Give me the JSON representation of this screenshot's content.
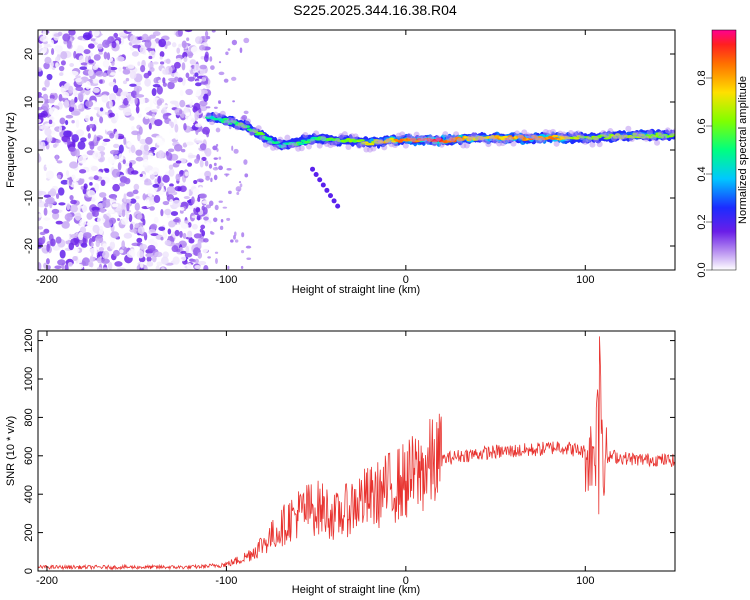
{
  "title": "S225.2025.344.16.38.R04",
  "chart_data": [
    {
      "type": "heatmap",
      "name": "spectrogram",
      "xlabel": "Height of straight line (km)",
      "ylabel": "Frequency (Hz)",
      "xlim": [
        -205,
        150
      ],
      "ylim": [
        -25,
        25
      ],
      "xticks": [
        -200,
        -100,
        0,
        100
      ],
      "xtick_labels": [
        "-200",
        "-100",
        "0",
        "100"
      ],
      "yticks": [
        -20,
        -10,
        0,
        10,
        20
      ],
      "ytick_labels": [
        "-20",
        "-10",
        "0",
        "10",
        "20"
      ],
      "colorbar": {
        "label": "Normalized spectral amplitude",
        "range": [
          0,
          1
        ],
        "ticks": [
          0.0,
          0.2,
          0.4,
          0.6,
          0.8
        ],
        "tick_labels": [
          "0.0",
          "0.2",
          "0.4",
          "0.6",
          "0.8"
        ]
      },
      "ridge": {
        "x": [
          -110,
          -100,
          -90,
          -80,
          -70,
          -60,
          -50,
          -40,
          -30,
          -20,
          -10,
          0,
          20,
          40,
          60,
          80,
          100,
          120,
          150
        ],
        "y": [
          7,
          6,
          5,
          3,
          1,
          1.5,
          2.5,
          2,
          2,
          1.5,
          2,
          2,
          2,
          2.5,
          2.5,
          2.5,
          2.5,
          3,
          3
        ],
        "amplitude": [
          0.45,
          0.5,
          0.55,
          0.55,
          0.45,
          0.5,
          0.5,
          0.55,
          0.6,
          0.7,
          0.75,
          0.85,
          0.95,
          0.7,
          0.8,
          0.85,
          0.6,
          0.65,
          0.6
        ]
      },
      "noise_region": {
        "x": [
          -205,
          -110
        ],
        "amplitude": 0.15
      }
    },
    {
      "type": "line",
      "name": "snr",
      "xlabel": "Height of straight line (km)",
      "ylabel": "SNR (10 * v/v)",
      "xlim": [
        -205,
        150
      ],
      "ylim": [
        0,
        1250
      ],
      "xticks": [
        -200,
        -100,
        0,
        100
      ],
      "xtick_labels": [
        "-200",
        "-100",
        "0",
        "100"
      ],
      "yticks": [
        0,
        200,
        400,
        600,
        800,
        1000,
        1200
      ],
      "ytick_labels": [
        "0",
        "200",
        "400",
        "600",
        "800",
        "1000",
        "1200"
      ],
      "color": "#e8332f",
      "series": [
        {
          "name": "SNR",
          "x": [
            -205,
            -180,
            -150,
            -120,
            -110,
            -100,
            -95,
            -90,
            -85,
            -80,
            -75,
            -70,
            -65,
            -60,
            -55,
            -50,
            -45,
            -40,
            -35,
            -30,
            -25,
            -20,
            -15,
            -10,
            -5,
            0,
            5,
            10,
            15,
            20,
            25,
            30,
            40,
            50,
            60,
            70,
            80,
            85,
            90,
            95,
            100,
            103,
            106,
            108,
            110,
            112,
            115,
            120,
            130,
            140,
            150
          ],
          "y": [
            20,
            20,
            20,
            20,
            25,
            35,
            50,
            70,
            100,
            140,
            180,
            220,
            270,
            300,
            320,
            330,
            320,
            280,
            300,
            340,
            370,
            380,
            400,
            430,
            450,
            470,
            500,
            530,
            560,
            580,
            590,
            600,
            610,
            620,
            625,
            630,
            640,
            650,
            640,
            630,
            620,
            600,
            650,
            1150,
            600,
            580,
            600,
            590,
            580,
            580,
            575
          ]
        }
      ]
    }
  ]
}
